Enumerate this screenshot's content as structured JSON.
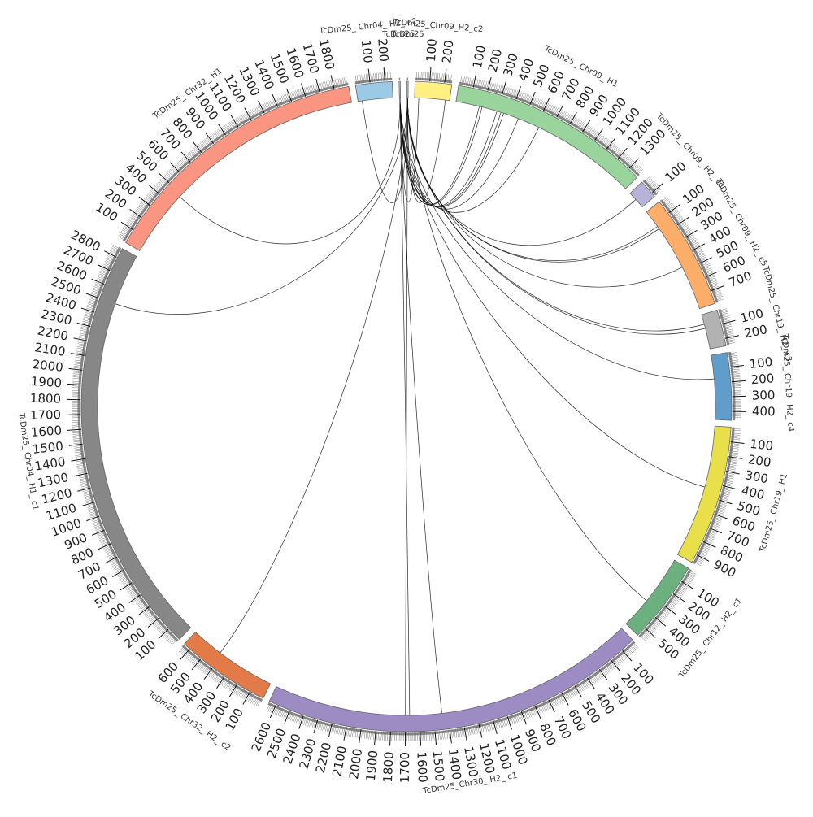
{
  "chart_data": {
    "type": "chord",
    "title": "",
    "tick_step": 100,
    "segments": [
      {
        "name": "TcDm25_Chr09_H2_c2",
        "label": "TcDm25_Chr09_H2_c2",
        "length": 250,
        "color": "#fff07f"
      },
      {
        "name": "TcDm25_Chr09_H1",
        "label": "TcDm25_ Chr09_ H1",
        "length": 1380,
        "color": "#98d49c"
      },
      {
        "name": "TcDm25_Chr09_H2_c1",
        "label": "TcDm25_ Chr09_ H2_ c1",
        "length": 130,
        "color": "#b7b2d7"
      },
      {
        "name": "TcDm25_Chr09_H2_c5",
        "label": "TcDm25_ Chr09_ H2_ c5",
        "length": 790,
        "color": "#fcad6a"
      },
      {
        "name": "TcDm25_Chr19_H2_c3",
        "label": "TcDm25_ Chr19_ H2_ c3",
        "length": 250,
        "color": "#b2b2b2"
      },
      {
        "name": "TcDm25_Chr19_H2_c4",
        "label": "TcDm25_ Chr19_ H2_ c4",
        "length": 460,
        "color": "#619dca"
      },
      {
        "name": "TcDm25_Chr19_H1",
        "label": "TcDm25_ Chr19_ H1",
        "length": 960,
        "color": "#e9df4b"
      },
      {
        "name": "TcDm25_Chr12_H2_c1",
        "label": "TcDm25_ Chr12_ H2_ c1",
        "length": 570,
        "color": "#6cb07f"
      },
      {
        "name": "TcDm25_Chr30_H2_c1",
        "label": "TcDm25_Chr30_ H2_ c1",
        "length": 2650,
        "color": "#9d8bc4"
      },
      {
        "name": "TcDm25_Chr32_H2_c2",
        "label": "TcDm25_ Chr32_ H2_ c2",
        "length": 650,
        "color": "#e27b48"
      },
      {
        "name": "TcDm25_Chr04_H1_c1",
        "label": "TcDm25_ Chr04_ H1_ c1",
        "length": 2870,
        "color": "#878787"
      },
      {
        "name": "TcDm25_Chr32_H1",
        "label": "TcDm25_ Chr32_ H1",
        "length": 1900,
        "color": "#f99580"
      },
      {
        "name": "TcDm25_Chr04_H2_c2",
        "label": "TcDm25_ Chr04_ H2_ c2",
        "length": 250,
        "color": "#9acae6"
      },
      {
        "name": "TcDm25_Chr04_H2_c3",
        "label": "TcDm25",
        "length": 8,
        "color": "#cccccc"
      },
      {
        "name": "TcDm25_Chr04_H2_c4",
        "label": "TcDm25",
        "length": 8,
        "color": "#cccccc"
      }
    ],
    "links": [
      {
        "a": "TcDm25_Chr04_H2_c3",
        "ap": 4,
        "b": "TcDm25_Chr09_H1",
        "bp": 170
      },
      {
        "a": "TcDm25_Chr04_H2_c3",
        "ap": 4,
        "b": "TcDm25_Chr09_H1",
        "bp": 190
      },
      {
        "a": "TcDm25_Chr04_H2_c3",
        "ap": 4,
        "b": "TcDm25_Chr09_H1",
        "bp": 300
      },
      {
        "a": "TcDm25_Chr04_H2_c3",
        "ap": 4,
        "b": "TcDm25_Chr09_H1",
        "bp": 330
      },
      {
        "a": "TcDm25_Chr04_H2_c3",
        "ap": 4,
        "b": "TcDm25_Chr09_H1",
        "bp": 350
      },
      {
        "a": "TcDm25_Chr04_H2_c3",
        "ap": 4,
        "b": "TcDm25_Chr09_H1",
        "bp": 460
      },
      {
        "a": "TcDm25_Chr04_H2_c3",
        "ap": 4,
        "b": "TcDm25_Chr09_H1",
        "bp": 620
      },
      {
        "a": "TcDm25_Chr04_H2_c4",
        "ap": 4,
        "b": "TcDm25_Chr09_H2_c1",
        "bp": 60
      },
      {
        "a": "TcDm25_Chr04_H2_c4",
        "ap": 4,
        "b": "TcDm25_Chr09_H2_c5",
        "bp": 130
      },
      {
        "a": "TcDm25_Chr04_H2_c4",
        "ap": 4,
        "b": "TcDm25_Chr09_H2_c5",
        "bp": 150
      },
      {
        "a": "TcDm25_Chr04_H2_c4",
        "ap": 4,
        "b": "TcDm25_Chr09_H2_c5",
        "bp": 470
      },
      {
        "a": "TcDm25_Chr04_H2_c4",
        "ap": 4,
        "b": "TcDm25_Chr19_H2_c3",
        "bp": 70
      },
      {
        "a": "TcDm25_Chr04_H2_c4",
        "ap": 4,
        "b": "TcDm25_Chr19_H2_c3",
        "bp": 100
      },
      {
        "a": "TcDm25_Chr04_H2_c3",
        "ap": 4,
        "b": "TcDm25_Chr19_H2_c4",
        "bp": 170
      },
      {
        "a": "TcDm25_Chr04_H2_c3",
        "ap": 4,
        "b": "TcDm25_Chr19_H1",
        "bp": 440
      },
      {
        "a": "TcDm25_Chr04_H2_c4",
        "ap": 4,
        "b": "TcDm25_Chr12_H2_c1",
        "bp": 350
      },
      {
        "a": "TcDm25_Chr04_H2_c3",
        "ap": 4,
        "b": "TcDm25_Chr30_H2_c1",
        "bp": 1440
      },
      {
        "a": "TcDm25_Chr04_H2_c3",
        "ap": 4,
        "b": "TcDm25_Chr30_H2_c1",
        "bp": 1670
      },
      {
        "a": "TcDm25_Chr04_H2_c4",
        "ap": 4,
        "b": "TcDm25_Chr30_H2_c1",
        "bp": 1700
      },
      {
        "a": "TcDm25_Chr04_H2_c4",
        "ap": 4,
        "b": "TcDm25_Chr32_H2_c2",
        "bp": 420
      },
      {
        "a": "TcDm25_Chr04_H2_c4",
        "ap": 4,
        "b": "TcDm25_Chr04_H2_c2",
        "bp": 30
      },
      {
        "a": "TcDm25_Chr04_H2_c3",
        "ap": 4,
        "b": "TcDm25_Chr09_H2_c2",
        "bp": 30
      },
      {
        "a": "TcDm25_Chr04_H2_c4",
        "ap": 4,
        "b": "TcDm25_Chr09_H2_c2",
        "bp": 220
      },
      {
        "a": "TcDm25_Chr32_H1",
        "ap": 480,
        "b": "TcDm25_Chr04_H2_c3",
        "bp": 4
      },
      {
        "a": "TcDm25_Chr04_H1_c1",
        "ap": 2500,
        "b": "TcDm25_Chr04_H2_c4",
        "bp": 4
      }
    ]
  }
}
